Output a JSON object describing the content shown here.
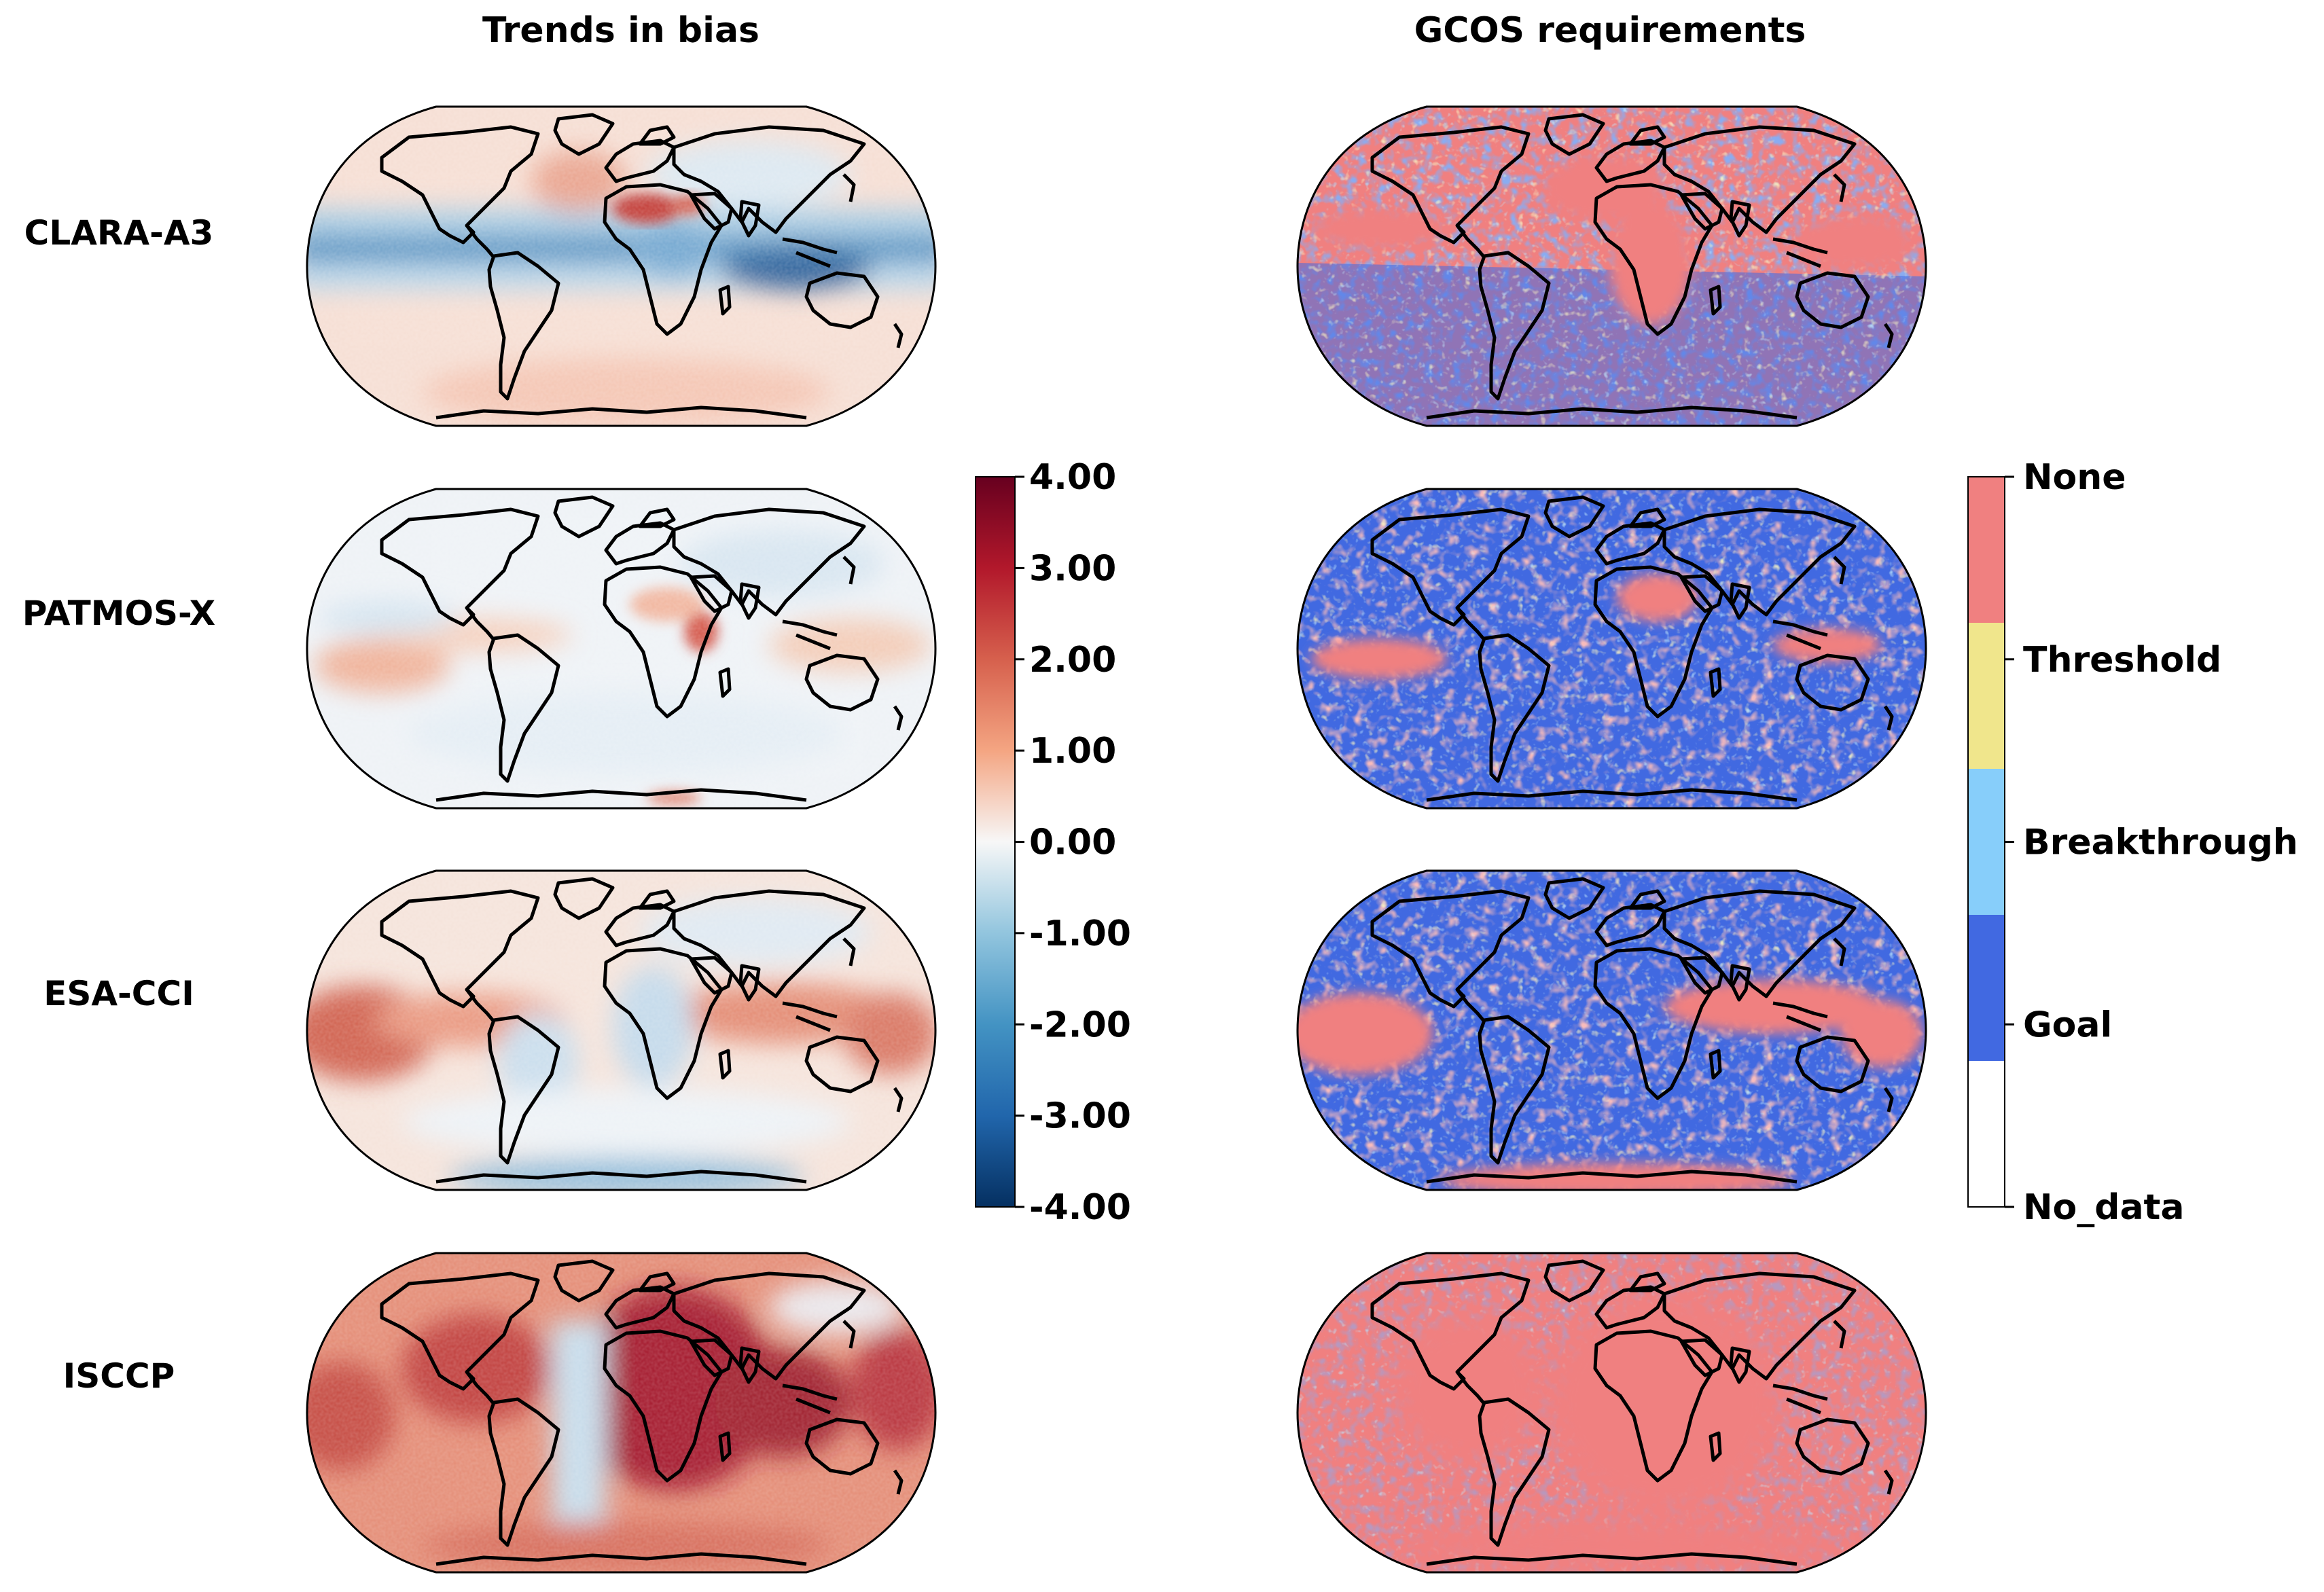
{
  "columns": {
    "left_title": "Trends in bias",
    "right_title": "GCOS requirements"
  },
  "datasets": [
    {
      "label": "CLARA-A3"
    },
    {
      "label": "PATMOS-X"
    },
    {
      "label": "ESA-CCI"
    },
    {
      "label": "ISCCP"
    }
  ],
  "bias_colorbar": {
    "ticks": [
      "4.00",
      "3.00",
      "2.00",
      "1.00",
      "0.00",
      "-1.00",
      "-2.00",
      "-3.00",
      "-4.00"
    ],
    "range": [
      -4,
      4
    ],
    "colormap": "RdBu_r",
    "colors": [
      "#053061",
      "#2166ac",
      "#4393c3",
      "#92c5de",
      "#f7f7f7",
      "#f4a582",
      "#d6604d",
      "#b2182b",
      "#67001f"
    ]
  },
  "gcos_colorbar": {
    "categories": [
      {
        "label": "None",
        "color": "#f08080"
      },
      {
        "label": "Threshold",
        "color": "#f0e68c"
      },
      {
        "label": "Breakthrough",
        "color": "#87cefa"
      },
      {
        "label": "Goal",
        "color": "#4169e1"
      },
      {
        "label": "No_data",
        "color": "#ffffff"
      }
    ]
  },
  "chart_data": {
    "type": "heatmap",
    "title": "",
    "panels": [
      {
        "dataset": "CLARA-A3",
        "variable": "Trends in bias",
        "pattern": "negative trends (blue) along the tropical belt, positive over North Africa and high latitudes"
      },
      {
        "dataset": "PATMOS-X",
        "variable": "Trends in bias",
        "pattern": "weak trends, mostly near zero with slight positive tropical Pacific"
      },
      {
        "dataset": "ESA-CCI",
        "variable": "Trends in bias",
        "pattern": "positive (red) over tropical oceans, negative over land"
      },
      {
        "dataset": "ISCCP",
        "variable": "Trends in bias",
        "pattern": "strongly positive almost everywhere, especially Africa and Indian Ocean"
      },
      {
        "dataset": "CLARA-A3",
        "variable": "GCOS requirements",
        "dominant_category": "None"
      },
      {
        "dataset": "PATMOS-X",
        "variable": "GCOS requirements",
        "dominant_category": "Goal"
      },
      {
        "dataset": "ESA-CCI",
        "variable": "GCOS requirements",
        "dominant_category": "Goal"
      },
      {
        "dataset": "ISCCP",
        "variable": "GCOS requirements",
        "dominant_category": "None"
      }
    ]
  }
}
